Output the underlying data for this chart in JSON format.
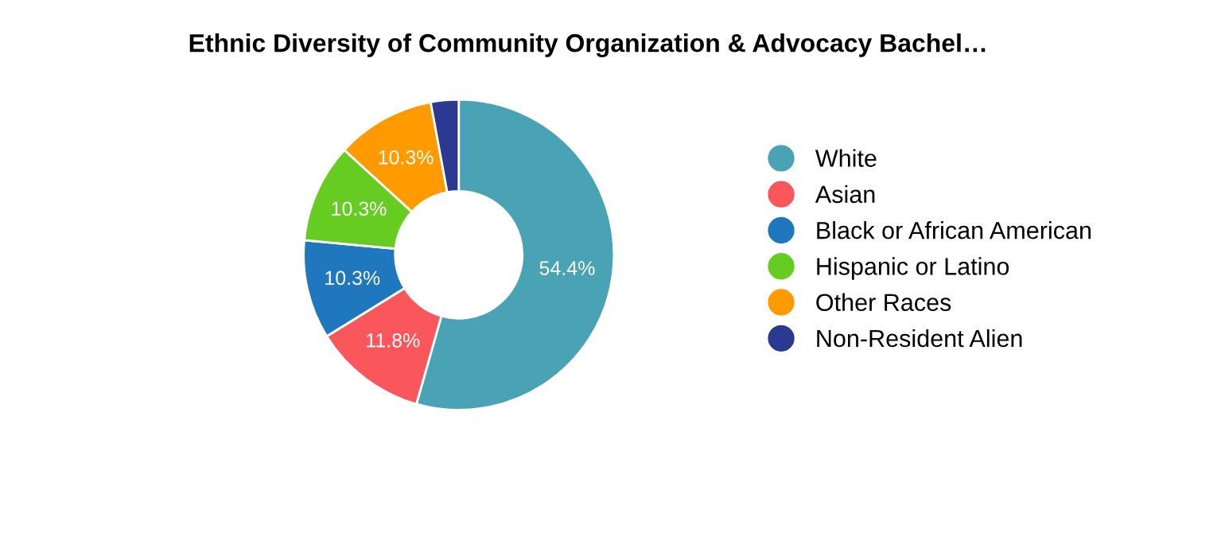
{
  "chart_data": {
    "type": "donut",
    "title": "Ethnic Diversity of Community Organization & Advocacy Bachel…",
    "categories": [
      "White",
      "Asian",
      "Black or African American",
      "Hispanic or Latino",
      "Other Races",
      "Non-Resident Alien"
    ],
    "values": [
      54.4,
      11.8,
      10.3,
      10.3,
      10.3,
      2.9
    ],
    "colors": [
      "#4aa3b5",
      "#f9575b",
      "#1f78bd",
      "#66cc22",
      "#ff9a00",
      "#2b3990"
    ],
    "value_labels": [
      "54.4%",
      "11.8%",
      "10.3%",
      "10.3%",
      "10.3%",
      null
    ],
    "legend": "right"
  }
}
